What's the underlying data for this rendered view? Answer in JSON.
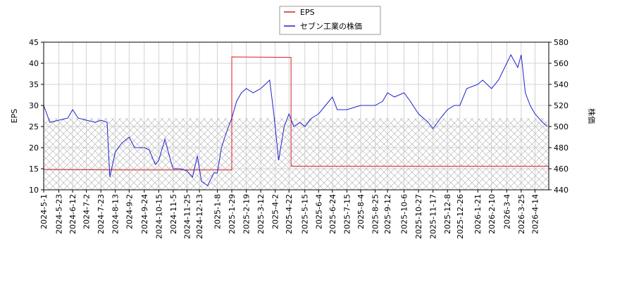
{
  "chart_data": {
    "type": "line",
    "ylabel": "EPS",
    "y2label": "株価",
    "ylim": [
      10,
      45
    ],
    "yticks": [
      10,
      15,
      20,
      25,
      30,
      35,
      40,
      45
    ],
    "y2lim": [
      440,
      580
    ],
    "y2ticks": [
      440,
      460,
      480,
      500,
      520,
      540,
      560,
      580
    ],
    "xlim": [
      "2024-5-1",
      "2026-5-4"
    ],
    "xticks": [
      "2024-5-1",
      "2024-5-23",
      "2024-6-12",
      "2024-7-2",
      "2024-7-23",
      "2024-8-13",
      "2024-9-2",
      "2024-9-24",
      "2024-10-15",
      "2024-11-5",
      "2024-11-25",
      "2024-12-13",
      "2025-1-8",
      "2025-1-29",
      "2025-2-19",
      "2025-3-12",
      "2025-4-2",
      "2025-4-22",
      "2025-5-15",
      "2025-6-4",
      "2025-6-24",
      "2025-7-15",
      "2025-8-4",
      "2025-8-25",
      "2025-9-12",
      "2025-10-6",
      "2025-10-27",
      "2025-11-17",
      "2025-12-8",
      "2025-12-26",
      "2026-1-21",
      "2026-2-10",
      "2026-3-4",
      "2026-3-25",
      "2026-4-14"
    ],
    "grid": true,
    "legend": "upper center",
    "series": [
      {
        "name": "EPS",
        "color": "#d62020",
        "axis": "y",
        "x": [
          "2024-5-1",
          "2024-9-1",
          "2025-1-29",
          "2025-1-29",
          "2025-4-25",
          "2025-4-25",
          "2026-5-4"
        ],
        "values": [
          14.8,
          14.7,
          14.7,
          41.5,
          41.4,
          15.6,
          15.6
        ]
      },
      {
        "name": "セブン工業の株価",
        "color": "#2020cc",
        "axis": "y2",
        "x": [
          "2024-5-1",
          "2024-5-10",
          "2024-5-23",
          "2024-6-5",
          "2024-6-12",
          "2024-6-20",
          "2024-7-2",
          "2024-7-15",
          "2024-7-23",
          "2024-8-1",
          "2024-8-5",
          "2024-8-13",
          "2024-8-22",
          "2024-9-2",
          "2024-9-10",
          "2024-9-24",
          "2024-10-1",
          "2024-10-10",
          "2024-10-15",
          "2024-10-24",
          "2024-11-1",
          "2024-11-5",
          "2024-11-15",
          "2024-11-25",
          "2024-12-3",
          "2024-12-10",
          "2024-12-16",
          "2024-12-25",
          "2025-1-3",
          "2025-1-8",
          "2025-1-14",
          "2025-1-22",
          "2025-1-29",
          "2025-2-5",
          "2025-2-12",
          "2025-2-19",
          "2025-3-1",
          "2025-3-12",
          "2025-3-25",
          "2025-3-31",
          "2025-4-7",
          "2025-4-15",
          "2025-4-22",
          "2025-4-29",
          "2025-5-8",
          "2025-5-15",
          "2025-5-25",
          "2025-6-4",
          "2025-6-14",
          "2025-6-24",
          "2025-7-1",
          "2025-7-15",
          "2025-7-25",
          "2025-8-4",
          "2025-8-15",
          "2025-8-25",
          "2025-9-5",
          "2025-9-12",
          "2025-9-22",
          "2025-10-6",
          "2025-10-15",
          "2025-10-27",
          "2025-11-10",
          "2025-11-17",
          "2025-11-28",
          "2025-12-8",
          "2025-12-18",
          "2025-12-26",
          "2026-1-5",
          "2026-1-21",
          "2026-1-28",
          "2026-2-10",
          "2026-2-20",
          "2026-3-4",
          "2026-3-10",
          "2026-3-20",
          "2026-3-25",
          "2026-3-31",
          "2026-4-7",
          "2026-4-14",
          "2026-4-25",
          "2026-5-2"
        ],
        "values": [
          520,
          504,
          506,
          508,
          516,
          508,
          506,
          504,
          506,
          504,
          452,
          476,
          484,
          490,
          480,
          480,
          478,
          464,
          468,
          488,
          468,
          460,
          460,
          458,
          452,
          472,
          448,
          444,
          456,
          456,
          480,
          496,
          508,
          524,
          532,
          536,
          532,
          536,
          544,
          512,
          468,
          500,
          512,
          500,
          504,
          500,
          508,
          512,
          520,
          528,
          516,
          516,
          518,
          520,
          520,
          520,
          524,
          532,
          528,
          532,
          524,
          512,
          504,
          498,
          508,
          516,
          520,
          520,
          536,
          540,
          544,
          536,
          544,
          560,
          568,
          556,
          568,
          532,
          520,
          512,
          504,
          500
        ]
      }
    ]
  }
}
